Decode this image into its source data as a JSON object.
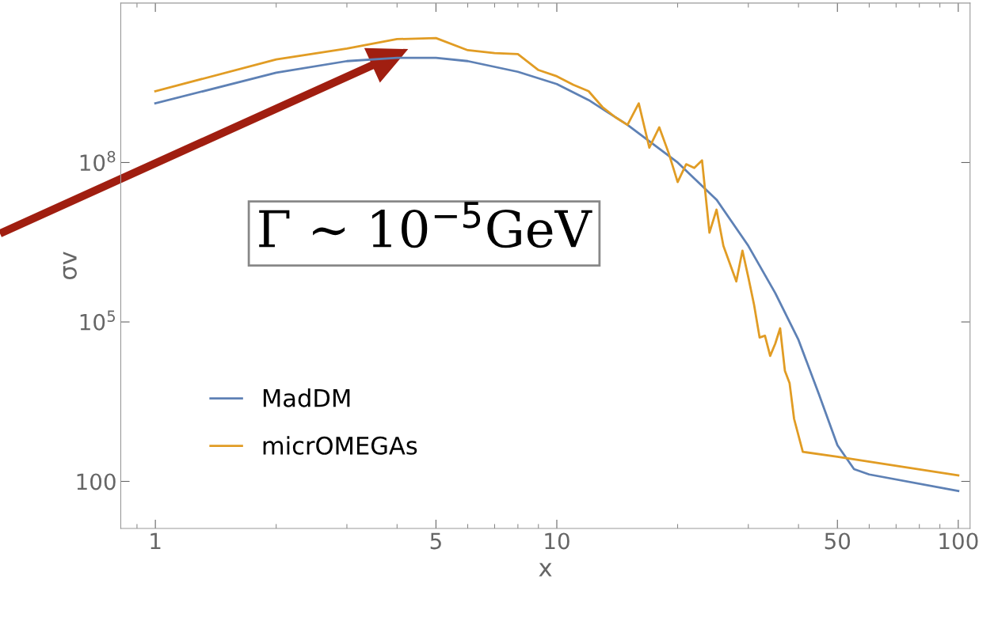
{
  "chart_data": {
    "type": "line",
    "xlabel": "x",
    "ylabel": "σv",
    "log": "xy",
    "grid": false,
    "legend": "bottom left",
    "xlim": [
      0.82,
      107
    ],
    "ylim": [
      13,
      100000000000.0
    ],
    "xticks": [
      1,
      5,
      10,
      50,
      100
    ],
    "yticks": [
      100,
      {
        "value": 100000,
        "label": "10$^{5}$"
      },
      {
        "value": 100000000,
        "label": "10$^{8}$"
      }
    ],
    "annotations": [
      "Γ ∼ 10$^{−5}$GeV"
    ],
    "series": [
      {
        "name": "MadDM",
        "color": "#5e81b5",
        "x": [
          1,
          2,
          3,
          4,
          5,
          6,
          8,
          10,
          12,
          15,
          20,
          25,
          30,
          35,
          40,
          45,
          50,
          55,
          60,
          100
        ],
        "values": [
          1300000000.0,
          4900000000.0,
          8100000000.0,
          9300000000.0,
          9300000000.0,
          8100000000.0,
          5100000000.0,
          3000000000.0,
          1500000000.0,
          510000000.0,
          100000000.0,
          20000000.0,
          2700000.0,
          350000.0,
          46000.0,
          4300,
          480,
          170,
          135,
          66
        ]
      },
      {
        "name": "micrOMEGAs",
        "color": "#e19c24",
        "x": [
          1,
          2,
          3,
          4,
          5,
          6,
          7,
          8,
          9,
          10,
          11,
          12,
          13,
          14,
          15,
          16,
          17,
          18,
          19,
          20,
          21,
          22,
          23,
          24,
          25,
          26,
          28,
          29,
          30,
          31,
          32,
          33,
          34,
          35,
          36,
          37,
          38,
          39,
          41,
          50,
          100
        ],
        "values": [
          2200000000.0,
          8700000000.0,
          14000000000.0,
          21000000000.0,
          22000000000.0,
          13000000000.0,
          11500000000.0,
          11000000000.0,
          5500000000.0,
          4200000000.0,
          2900000000.0,
          2200000000.0,
          1100000000.0,
          710000000.0,
          510000000.0,
          1300000000.0,
          190000000.0,
          460000000.0,
          150000000.0,
          43000000.0,
          93000000.0,
          79000000.0,
          110000000.0,
          4800000.0,
          13000000.0,
          2700000.0,
          580000.0,
          2200000.0,
          690000.0,
          210000.0,
          51000.0,
          55000.0,
          23000.0,
          39000.0,
          76000.0,
          12000.0,
          7100,
          1500,
          360,
          290,
          130
        ]
      }
    ]
  }
}
